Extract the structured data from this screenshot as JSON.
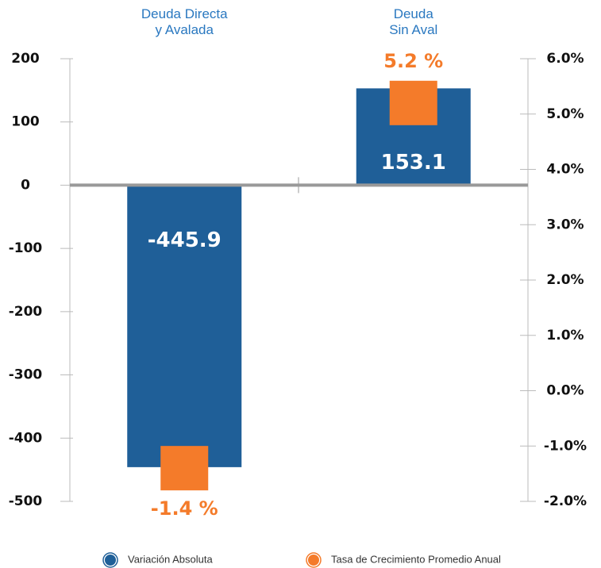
{
  "chart_data": {
    "type": "bar",
    "categories": [
      "Deuda Directa\ny Avalada",
      "Deuda\nSin Aval"
    ],
    "series": [
      {
        "name": "Variación Absoluta",
        "color": "#1f5f98",
        "values": [
          -445.9,
          153.1
        ]
      },
      {
        "name": "Tasa de Crecimiento Promedio Anual",
        "color": "#f47b2a",
        "axis": "y2",
        "values": [
          -1.4,
          5.2
        ],
        "value_labels": [
          "-1.4 %",
          "5.2 %"
        ]
      }
    ],
    "ylim": [
      -500,
      200
    ],
    "yticks": [
      200,
      100,
      0,
      -100,
      -200,
      -300,
      -400,
      -500
    ],
    "y2lim": [
      -2,
      6
    ],
    "y2ticks": [
      {
        "value": 6,
        "label": "6.0%"
      },
      {
        "value": 5,
        "label": "5.0%"
      },
      {
        "value": 4,
        "label": "4.0%"
      },
      {
        "value": 3,
        "label": "3.0%"
      },
      {
        "value": 2,
        "label": "2.0%"
      },
      {
        "value": 1,
        "label": "1.0%"
      },
      {
        "value": 0,
        "label": "0.0%"
      },
      {
        "value": -1,
        "label": "-1.0%"
      },
      {
        "value": -2,
        "label": "-2.0%"
      }
    ],
    "legend": "bottom"
  }
}
